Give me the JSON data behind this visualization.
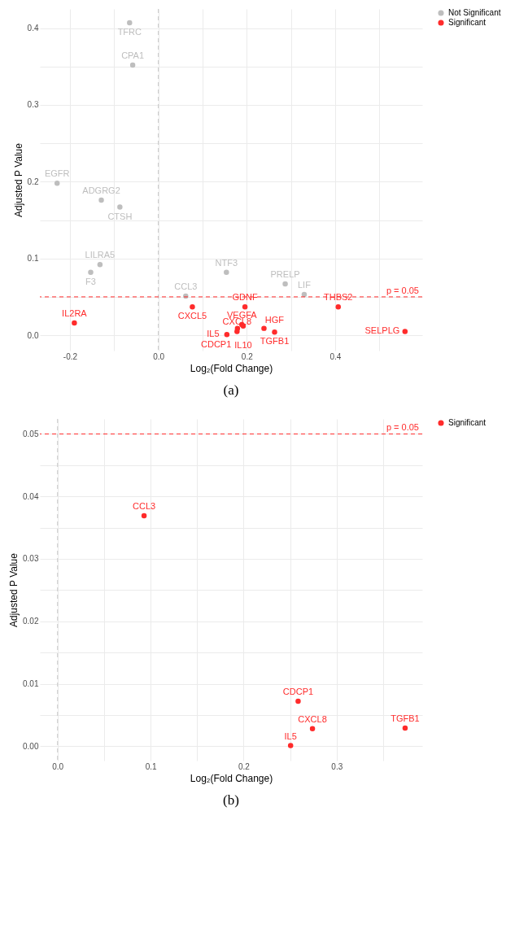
{
  "chart_data": [
    {
      "type": "scatter",
      "title": "(a)",
      "xlabel": "Log₂(Fold Change)",
      "ylabel": "Adjusted P Value",
      "xlim": [
        -0.268,
        0.597
      ],
      "ylim": [
        -0.02,
        0.425
      ],
      "xticks": [
        -0.2,
        {
          "value": -0.1,
          "label": null
        },
        {
          "value": 0,
          "label": "0.0"
        },
        {
          "value": 0.1,
          "label": null
        },
        0.2,
        {
          "value": 0.3,
          "label": null
        },
        0.4,
        {
          "value": 0.5,
          "label": null
        }
      ],
      "yticks": [
        {
          "value": 0,
          "label": "0.0"
        },
        {
          "value": 0.05,
          "label": null
        },
        0.1,
        {
          "value": 0.15,
          "label": null
        },
        0.2,
        {
          "value": 0.25,
          "label": null
        },
        0.3,
        {
          "value": 0.35,
          "label": null
        },
        0.4
      ],
      "grid": true,
      "legend": "right",
      "marker": "circle",
      "series": [
        {
          "name": "Not Significant",
          "color": "#bebebe",
          "x": [
            -0.065,
            -0.058,
            -0.229,
            -0.129,
            -0.087,
            -0.132,
            -0.153,
            0.154,
            0.062,
            0.287,
            0.33
          ],
          "values": [
            0.407,
            0.352,
            0.198,
            0.176,
            0.167,
            0.092,
            0.082,
            0.082,
            0.051,
            0.067,
            0.053
          ],
          "value_labels": [
            "TFRC",
            "CPA1",
            "EGFR",
            "ADGRG2",
            "CTSH",
            "LILRA5",
            "F3",
            "NTF3",
            "CCL3",
            "PRELP",
            "LIF"
          ]
        },
        {
          "name": "Significant",
          "color": "#ff2b2b",
          "x": [
            -0.19,
            0.077,
            0.196,
            0.189,
            0.192,
            0.179,
            0.178,
            0.155,
            0.239,
            0.263,
            0.407,
            0.558
          ],
          "values": [
            0.016,
            0.037,
            0.037,
            0.014,
            0.012,
            0.009,
            0.005,
            0.001,
            0.009,
            0.004,
            0.037,
            0.005
          ],
          "value_labels": [
            "IL2RA",
            "CXCL5",
            "GDNF",
            "VEGFA",
            "IL10",
            "CDCP1",
            "CXCL8",
            "IL5",
            "HGF",
            "TGFB1",
            "THBS2",
            "SELPLG"
          ]
        }
      ],
      "ref_lines": [
        {
          "axis": "x",
          "value": 0,
          "label": null,
          "color": "#c8c8c8",
          "line_style": "dashed"
        },
        {
          "axis": "y",
          "value": 0.05,
          "label": "p = 0.05",
          "color": "#ff2b2b",
          "line_style": "dashed"
        }
      ]
    },
    {
      "type": "scatter",
      "title": "(b)",
      "xlabel": "Log₂(Fold Change)",
      "ylabel": "Adjusted P Value",
      "xlim": [
        -0.019,
        0.392
      ],
      "ylim": [
        -0.0023,
        0.0524
      ],
      "xticks": [
        {
          "value": 0,
          "label": "0.0"
        },
        {
          "value": 0.05,
          "label": null
        },
        0.1,
        {
          "value": 0.15,
          "label": null
        },
        0.2,
        {
          "value": 0.25,
          "label": null
        },
        0.3,
        {
          "value": 0.35,
          "label": null
        }
      ],
      "yticks": [
        {
          "value": 0,
          "label": "0.00"
        },
        {
          "value": 0.005,
          "label": null
        },
        0.01,
        {
          "value": 0.015,
          "label": null
        },
        0.02,
        {
          "value": 0.025,
          "label": null
        },
        0.03,
        {
          "value": 0.035,
          "label": null
        },
        0.04,
        {
          "value": 0.045,
          "label": null
        },
        0.05
      ],
      "grid": true,
      "legend": "right",
      "marker": "circle",
      "series": [
        {
          "name": "Significant",
          "color": "#ff2b2b",
          "x": [
            0.093,
            0.2586,
            0.274,
            0.3736,
            0.2505
          ],
          "values": [
            0.0369,
            0.0072,
            0.0028,
            0.0029,
            0.0001
          ],
          "value_labels": [
            "CCL3",
            "CDCP1",
            "CXCL8",
            "TGFB1",
            "IL5"
          ]
        }
      ],
      "ref_lines": [
        {
          "axis": "x",
          "value": 0,
          "label": null,
          "color": "#c8c8c8",
          "line_style": "dashed"
        },
        {
          "axis": "y",
          "value": 0.05,
          "label": "p = 0.05",
          "color": "#ff2b2b",
          "line_style": "dashed"
        }
      ]
    }
  ]
}
